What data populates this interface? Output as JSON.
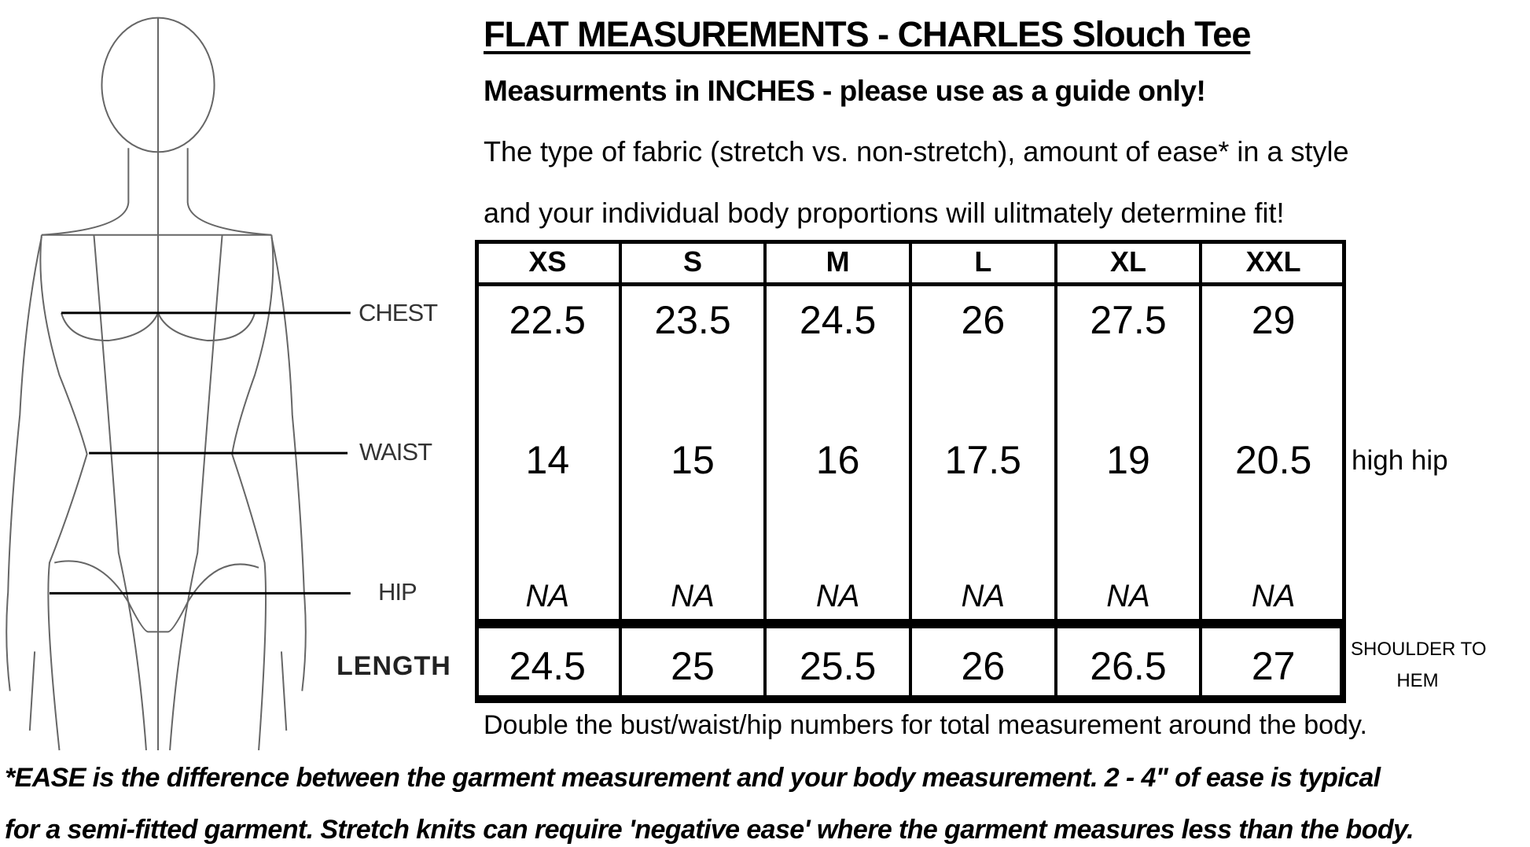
{
  "title": "FLAT MEASUREMENTS - CHARLES Slouch Tee",
  "subtitle": "Measurments in INCHES - please use as a guide only!",
  "intro_lines": [
    "The type of fabric (stretch vs. non-stretch), amount of ease* in a style",
    "and your individual body proportions will ulitmately determine fit!"
  ],
  "figure_labels": {
    "chest": "CHEST",
    "waist": "WAIST",
    "hip": "HIP",
    "length": "LENGTH"
  },
  "table": {
    "sizes": [
      "XS",
      "S",
      "M",
      "L",
      "XL",
      "XXL"
    ],
    "chest": [
      "22.5",
      "23.5",
      "24.5",
      "26",
      "27.5",
      "29"
    ],
    "waist": [
      "14",
      "15",
      "16",
      "17.5",
      "19",
      "20.5"
    ],
    "hip": [
      "NA",
      "NA",
      "NA",
      "NA",
      "NA",
      "NA"
    ],
    "length": [
      "24.5",
      "25",
      "25.5",
      "26",
      "26.5",
      "27"
    ],
    "waist_note": "high hip",
    "length_note_1": "SHOULDER TO",
    "length_note_2": "HEM"
  },
  "double_note": "Double the bust/waist/hip numbers for total measurement around the body.",
  "ease_lines": [
    "*EASE is the difference between the garment measurement and your body measurement. 2 - 4\" of ease is typical",
    "for a semi-fitted garment. Stretch knits can require 'negative ease' where the garment measures less than the body."
  ]
}
